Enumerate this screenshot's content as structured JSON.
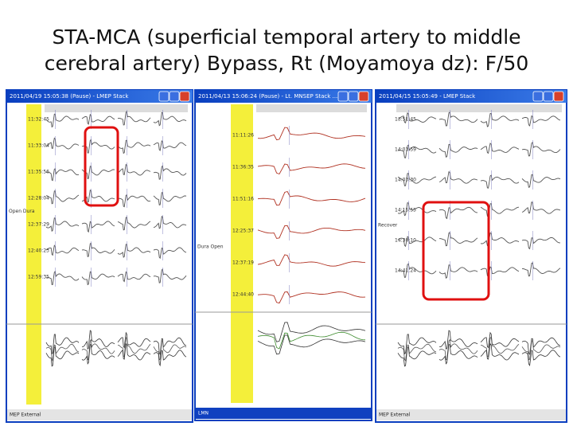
{
  "title_lines": [
    "STA-MCA (superficial temporal artery to middle",
    "cerebral artery) Bypass, Rt (Moyamoya dz): F/50"
  ],
  "windows": [
    {
      "title": "2011/04/19 15:05:38 (Pause) - LMEP Stack",
      "row_labels": [
        "11:32:45",
        "11:33:04",
        "11:35:56",
        "12:28:04",
        "12:37:29",
        "12:40:23",
        "12:59:35"
      ],
      "side_label": "Open Dura",
      "footer": "MEP External"
    },
    {
      "title": "2011/04/13 15:06:24 (Pause) - Lt. MNSEP Stack ...",
      "row_labels": [
        "11:11:26",
        "11:36:35",
        "11:51:16",
        "12:25:37",
        "12:37:19",
        "12:44:40"
      ],
      "side_label": "Dura Open",
      "footer": "LMN"
    },
    {
      "title": "2011/04/15 15:05:49 - LMEP Stack",
      "row_labels": [
        "13:51:45",
        "14:03:59",
        "14:03:30",
        "14:15:55",
        "14:30:10",
        "14:41:24"
      ],
      "side_label": "Recover",
      "footer": "MEP External"
    }
  ]
}
